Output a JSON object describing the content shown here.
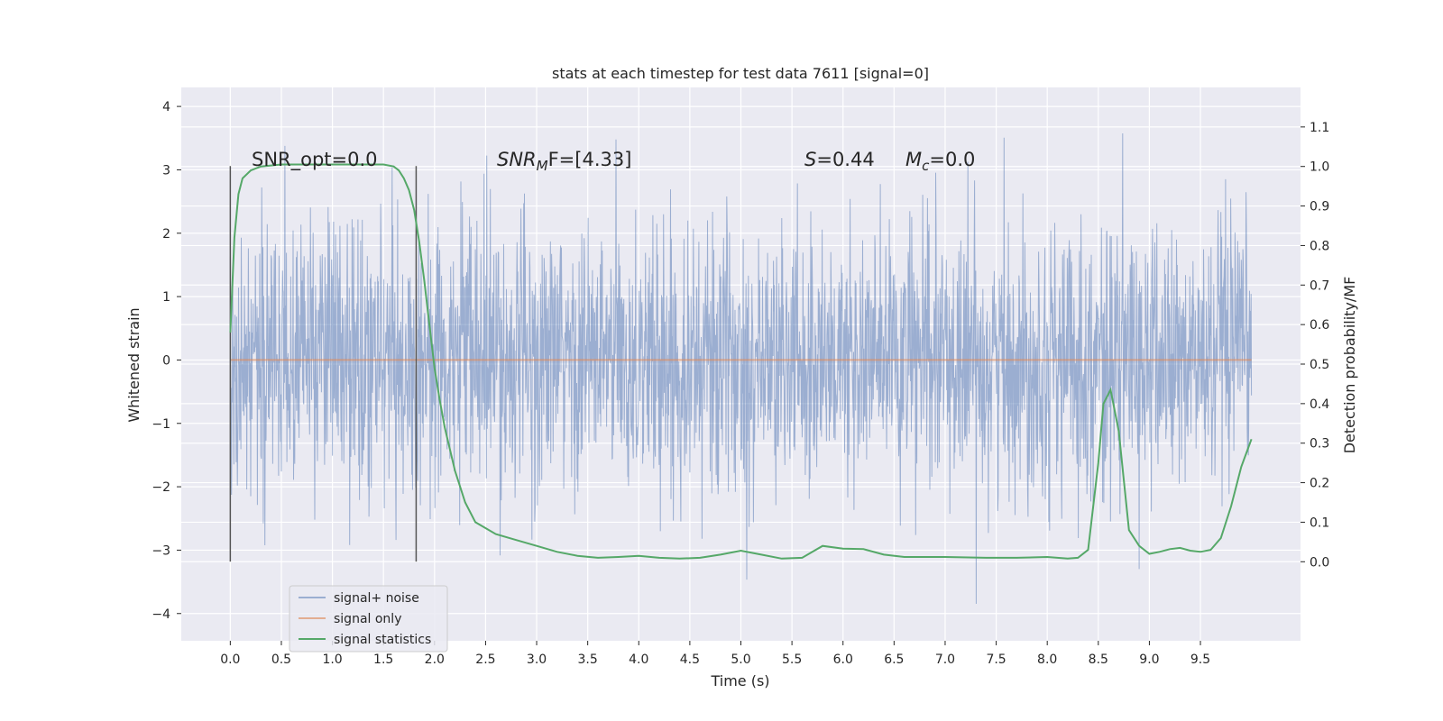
{
  "chart_data": {
    "type": "line",
    "title": "stats at each timestep for test data 7611 [signal=0]",
    "xlabel": "Time (s)",
    "ylabel": "Whitened strain",
    "y2label": "Detection probability/MF",
    "xlim": [
      -0.48,
      10.48
    ],
    "ylim": [
      -4.43,
      4.3
    ],
    "y2lim": [
      -0.2,
      1.2
    ],
    "xticks": [
      0.0,
      0.5,
      1.0,
      1.5,
      2.0,
      2.5,
      3.0,
      3.5,
      4.0,
      4.5,
      5.0,
      5.5,
      6.0,
      6.5,
      7.0,
      7.5,
      8.0,
      8.5,
      9.0,
      9.5
    ],
    "xtick_labels": [
      "0.0",
      "0.5",
      "1.0",
      "1.5",
      "2.0",
      "2.5",
      "3.0",
      "3.5",
      "4.0",
      "4.5",
      "5.0",
      "5.5",
      "6.0",
      "6.5",
      "7.0",
      "7.5",
      "8.0",
      "8.5",
      "9.0",
      "9.5"
    ],
    "yticks": [
      -4,
      -3,
      -2,
      -1,
      0,
      1,
      2,
      3,
      4
    ],
    "ytick_labels": [
      "−4",
      "−3",
      "−2",
      "−1",
      "0",
      "1",
      "2",
      "3",
      "4"
    ],
    "y2ticks": [
      0.0,
      0.1,
      0.2,
      0.3,
      0.4,
      0.5,
      0.6,
      0.7,
      0.8,
      0.9,
      1.0,
      1.1
    ],
    "y2tick_labels": [
      "0.0",
      "0.1",
      "0.2",
      "0.3",
      "0.4",
      "0.5",
      "0.6",
      "0.7",
      "0.8",
      "0.9",
      "1.0",
      "1.1"
    ],
    "grid": true,
    "legend_position": "lower-left",
    "colors": {
      "noise": "#4c72b0",
      "signal": "#dd8452",
      "stats": "#55a868",
      "background": "#eaeaf2",
      "vline": "#555555"
    },
    "series": [
      {
        "name": "signal+ noise",
        "axis": "left",
        "x_range": [
          0.0,
          10.0
        ],
        "envelope_min": -4.05,
        "envelope_max": 3.95,
        "note_values": "dense noise, typical range approx -2.5 to 2.5"
      },
      {
        "name": "signal only",
        "axis": "left",
        "x": [
          0.0,
          10.0
        ],
        "y": [
          0.0,
          0.0
        ]
      },
      {
        "name": "signal statistics",
        "axis": "right",
        "x": [
          0.0,
          0.04,
          0.08,
          0.12,
          0.2,
          0.3,
          0.5,
          0.8,
          1.0,
          1.2,
          1.4,
          1.5,
          1.6,
          1.65,
          1.7,
          1.75,
          1.8,
          1.85,
          1.9,
          1.95,
          2.0,
          2.05,
          2.1,
          2.2,
          2.3,
          2.4,
          2.5,
          2.6,
          2.8,
          3.0,
          3.2,
          3.4,
          3.6,
          3.8,
          4.0,
          4.2,
          4.4,
          4.6,
          4.8,
          5.0,
          5.2,
          5.4,
          5.6,
          5.7,
          5.8,
          6.0,
          6.2,
          6.4,
          6.6,
          7.0,
          7.4,
          7.7,
          8.0,
          8.2,
          8.3,
          8.4,
          8.5,
          8.55,
          8.62,
          8.7,
          8.8,
          8.9,
          9.0,
          9.1,
          9.2,
          9.3,
          9.4,
          9.5,
          9.6,
          9.7,
          9.8,
          9.9,
          10.0
        ],
        "y": [
          0.58,
          0.82,
          0.93,
          0.97,
          0.99,
          1.0,
          1.005,
          1.005,
          1.005,
          1.005,
          1.005,
          1.005,
          1.0,
          0.99,
          0.97,
          0.94,
          0.89,
          0.81,
          0.71,
          0.6,
          0.49,
          0.41,
          0.34,
          0.23,
          0.15,
          0.1,
          0.085,
          0.07,
          0.055,
          0.04,
          0.025,
          0.015,
          0.01,
          0.012,
          0.015,
          0.01,
          0.008,
          0.01,
          0.018,
          0.028,
          0.018,
          0.008,
          0.01,
          0.025,
          0.04,
          0.033,
          0.032,
          0.018,
          0.012,
          0.012,
          0.01,
          0.01,
          0.012,
          0.008,
          0.01,
          0.03,
          0.25,
          0.4,
          0.435,
          0.33,
          0.08,
          0.04,
          0.02,
          0.025,
          0.032,
          0.035,
          0.028,
          0.025,
          0.03,
          0.06,
          0.14,
          0.24,
          0.31
        ]
      }
    ],
    "vertical_lines": [
      {
        "x": 0.0,
        "ymin": -3.18,
        "ymax": 3.06
      },
      {
        "x": 1.82,
        "ymin": -3.18,
        "ymax": 3.06
      }
    ],
    "annotations": [
      {
        "text": "SNR_opt=0.0",
        "x": 0.2,
        "y": 3.2
      },
      {
        "text_main": "SNR",
        "text_sub": "M",
        "text_tail": "F=[4.33]",
        "x": 2.6,
        "y": 3.2
      },
      {
        "text_main": "S",
        "text_tail": "=0.44",
        "x": 5.62,
        "y": 3.2
      },
      {
        "text_main": "M",
        "text_sub": "c",
        "text_tail": "=0.0",
        "x": 6.62,
        "y": 3.2
      }
    ]
  }
}
